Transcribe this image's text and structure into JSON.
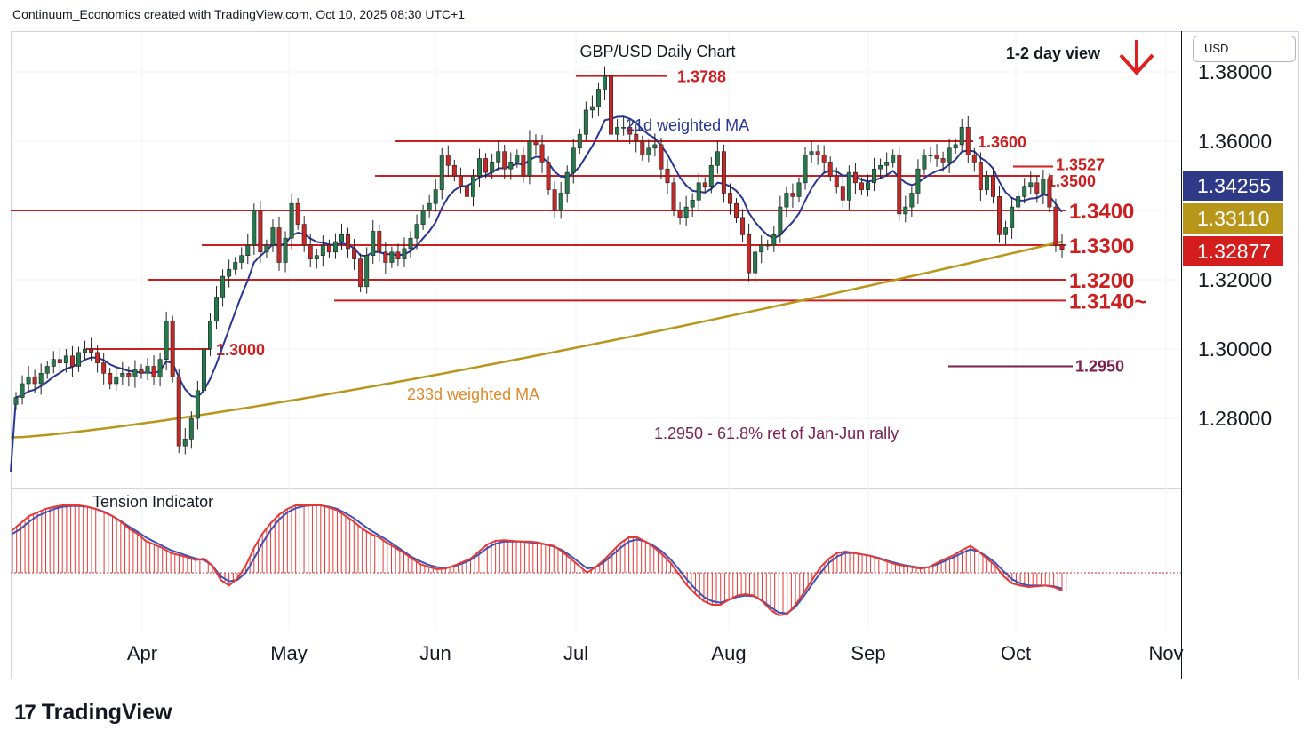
{
  "header": {
    "text": "Continuum_Economics created with TradingView.com, Oct 10, 2025 08:30 UTC+1"
  },
  "brand": {
    "name": "TradingView",
    "logo": "17"
  },
  "currency": "USD",
  "chart_data": {
    "type": "candlestick",
    "title": "GBP/USD Daily Chart",
    "view": "1-2 day view",
    "view_direction": "down",
    "x_ticks": [
      "Apr",
      "May",
      "Jun",
      "Jul",
      "Aug",
      "Sep",
      "Oct",
      "Nov"
    ],
    "y_ticks": [
      "1.38000",
      "1.36000",
      "1.34000",
      "1.32000",
      "1.30000",
      "1.28000"
    ],
    "y_tick_values": [
      1.38,
      1.36,
      1.34,
      1.32,
      1.3,
      1.28
    ],
    "ylim": [
      1.263,
      1.3915
    ],
    "price_tags": [
      {
        "label": "1.34255",
        "value": 1.34255,
        "color": "#2e3a87"
      },
      {
        "label": "1.33110",
        "value": 1.3311,
        "color": "#b8961a"
      },
      {
        "label": "1.32877",
        "value": 1.32877,
        "color": "#d41e1e"
      }
    ],
    "levels": [
      {
        "label": "1.3788",
        "value": 1.3788,
        "x_from": 648,
        "x_to": 750,
        "color": "#cc1f1f"
      },
      {
        "label": "1.3600",
        "value": 1.36,
        "x_from": 444,
        "x_to": 1095,
        "color": "#cc1f1f"
      },
      {
        "label": "1.3527",
        "value": 1.3527,
        "x_from": 1140,
        "x_to": 1185,
        "color": "#cc1f1f"
      },
      {
        "label": "1.3500",
        "value": 1.35,
        "x_from": 422,
        "x_to": 1170,
        "color": "#cc1f1f"
      },
      {
        "label": "1.3400",
        "value": 1.34,
        "x_from": 12,
        "x_to": 1200,
        "color": "#cc1f1f"
      },
      {
        "label": "1.3300",
        "value": 1.33,
        "x_from": 227,
        "x_to": 1200,
        "color": "#cc1f1f"
      },
      {
        "label": "1.3200",
        "value": 1.32,
        "x_from": 166,
        "x_to": 1200,
        "color": "#cc1f1f"
      },
      {
        "label": "1.3140~",
        "value": 1.314,
        "x_from": 376,
        "x_to": 1200,
        "color": "#cc1f1f"
      },
      {
        "label": "1.3000",
        "value": 1.3,
        "x_from": 97,
        "x_to": 237,
        "color": "#cc1f1f"
      },
      {
        "label": "1.2950",
        "value": 1.295,
        "x_from": 1067,
        "x_to": 1207,
        "color": "#7a1f4e"
      }
    ],
    "annotations": [
      {
        "text": "21d weighted MA",
        "color": "#283593"
      },
      {
        "text": "233d weighted MA",
        "color": "#e0892a"
      },
      {
        "text": "1.2950 - 61.8% ret of Jan-Jun rally",
        "color": "#7a1f4e"
      },
      {
        "text": "Tension Indicator",
        "color": "#131722"
      }
    ],
    "closes": [
      1.286,
      1.29,
      1.292,
      1.29,
      1.293,
      1.295,
      1.297,
      1.296,
      1.298,
      1.295,
      1.299,
      1.3,
      1.299,
      1.296,
      1.293,
      1.29,
      1.292,
      1.293,
      1.292,
      1.294,
      1.293,
      1.295,
      1.292,
      1.297,
      1.308,
      1.292,
      1.272,
      1.274,
      1.28,
      1.288,
      1.3,
      1.308,
      1.315,
      1.321,
      1.323,
      1.325,
      1.327,
      1.33,
      1.34,
      1.328,
      1.33,
      1.335,
      1.325,
      1.332,
      1.342,
      1.336,
      1.33,
      1.326,
      1.327,
      1.33,
      1.328,
      1.331,
      1.333,
      1.329,
      1.326,
      1.318,
      1.327,
      1.334,
      1.328,
      1.325,
      1.328,
      1.326,
      1.329,
      1.332,
      1.336,
      1.34,
      1.342,
      1.346,
      1.356,
      1.353,
      1.35,
      1.347,
      1.344,
      1.35,
      1.355,
      1.351,
      1.354,
      1.357,
      1.352,
      1.354,
      1.356,
      1.35,
      1.36,
      1.359,
      1.354,
      1.346,
      1.34,
      1.345,
      1.351,
      1.358,
      1.362,
      1.369,
      1.37,
      1.375,
      1.3788,
      1.362,
      1.364,
      1.364,
      1.362,
      1.36,
      1.356,
      1.358,
      1.359,
      1.352,
      1.348,
      1.34,
      1.338,
      1.341,
      1.343,
      1.348,
      1.347,
      1.353,
      1.357,
      1.345,
      1.342,
      1.338,
      1.333,
      1.322,
      1.328,
      1.33,
      1.33,
      1.333,
      1.341,
      1.345,
      1.344,
      1.348,
      1.356,
      1.357,
      1.356,
      1.354,
      1.35,
      1.347,
      1.343,
      1.351,
      1.348,
      1.346,
      1.348,
      1.352,
      1.353,
      1.354,
      1.356,
      1.339,
      1.341,
      1.345,
      1.352,
      1.356,
      1.356,
      1.355,
      1.354,
      1.358,
      1.359,
      1.364,
      1.356,
      1.354,
      1.346,
      1.35,
      1.344,
      1.333,
      1.335,
      1.341,
      1.344,
      1.347,
      1.348,
      1.345,
      1.349,
      1.341,
      1.33,
      1.3288
    ]
  },
  "tension_indicator": {
    "fast": [
      0.6,
      0.7,
      0.8,
      0.85,
      0.9,
      0.93,
      0.95,
      0.95,
      0.95,
      0.93,
      0.9,
      0.85,
      0.8,
      0.72,
      0.62,
      0.55,
      0.45,
      0.4,
      0.35,
      0.28,
      0.25,
      0.22,
      0.18,
      0.2,
      0.1,
      -0.1,
      -0.18,
      -0.08,
      0.1,
      0.35,
      0.55,
      0.7,
      0.82,
      0.9,
      0.95,
      0.95,
      0.95,
      0.95,
      0.92,
      0.88,
      0.8,
      0.72,
      0.62,
      0.55,
      0.5,
      0.42,
      0.35,
      0.28,
      0.2,
      0.12,
      0.08,
      0.05,
      0.06,
      0.1,
      0.15,
      0.2,
      0.3,
      0.4,
      0.45,
      0.46,
      0.45,
      0.44,
      0.44,
      0.43,
      0.4,
      0.38,
      0.3,
      0.2,
      0.1,
      0.0,
      0.08,
      0.18,
      0.3,
      0.42,
      0.5,
      0.5,
      0.44,
      0.36,
      0.26,
      0.14,
      -0.02,
      -0.18,
      -0.3,
      -0.4,
      -0.45,
      -0.45,
      -0.38,
      -0.32,
      -0.3,
      -0.32,
      -0.4,
      -0.52,
      -0.6,
      -0.58,
      -0.45,
      -0.28,
      -0.1,
      0.08,
      0.2,
      0.28,
      0.3,
      0.28,
      0.26,
      0.24,
      0.2,
      0.16,
      0.12,
      0.1,
      0.08,
      0.06,
      0.08,
      0.14,
      0.2,
      0.25,
      0.32,
      0.38,
      0.3,
      0.2,
      0.1,
      -0.05,
      -0.15,
      -0.18,
      -0.2,
      -0.19,
      -0.18,
      -0.2,
      -0.25
    ],
    "slow": [
      0.55,
      0.62,
      0.72,
      0.8,
      0.85,
      0.9,
      0.93,
      0.94,
      0.94,
      0.93,
      0.9,
      0.86,
      0.8,
      0.73,
      0.65,
      0.58,
      0.5,
      0.44,
      0.38,
      0.32,
      0.28,
      0.24,
      0.2,
      0.18,
      0.1,
      -0.05,
      -0.12,
      -0.1,
      0.0,
      0.2,
      0.42,
      0.6,
      0.75,
      0.85,
      0.91,
      0.94,
      0.95,
      0.95,
      0.93,
      0.9,
      0.84,
      0.77,
      0.68,
      0.6,
      0.53,
      0.46,
      0.38,
      0.3,
      0.22,
      0.16,
      0.11,
      0.08,
      0.07,
      0.09,
      0.13,
      0.18,
      0.26,
      0.35,
      0.41,
      0.44,
      0.44,
      0.44,
      0.43,
      0.42,
      0.4,
      0.37,
      0.32,
      0.24,
      0.15,
      0.06,
      0.08,
      0.15,
      0.25,
      0.35,
      0.44,
      0.47,
      0.44,
      0.38,
      0.3,
      0.19,
      0.05,
      -0.1,
      -0.23,
      -0.34,
      -0.4,
      -0.42,
      -0.38,
      -0.34,
      -0.32,
      -0.33,
      -0.39,
      -0.48,
      -0.56,
      -0.57,
      -0.48,
      -0.33,
      -0.16,
      0.0,
      0.14,
      0.23,
      0.28,
      0.28,
      0.26,
      0.24,
      0.21,
      0.17,
      0.14,
      0.11,
      0.09,
      0.07,
      0.08,
      0.12,
      0.17,
      0.22,
      0.28,
      0.33,
      0.3,
      0.23,
      0.14,
      0.02,
      -0.09,
      -0.15,
      -0.18,
      -0.18,
      -0.18,
      -0.19,
      -0.22
    ]
  }
}
